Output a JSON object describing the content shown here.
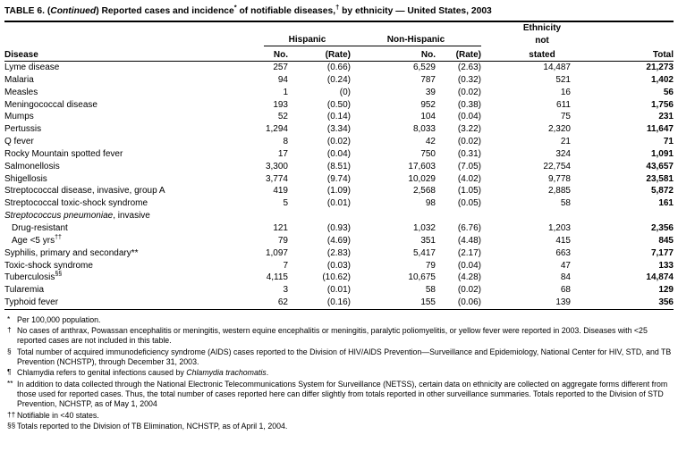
{
  "title": {
    "prefix": "TABLE 6. (",
    "continued": "Continued",
    "mid": ") Reported cases and incidence",
    "sup1": "*",
    "mid2": " of notifiable diseases,",
    "sup2": "†",
    "suffix": " by ethnicity — United States, 2003"
  },
  "table": {
    "header": {
      "disease": "Disease",
      "group_hispanic": "Hispanic",
      "group_non_hispanic": "Non-Hispanic",
      "sub_no": "No.",
      "sub_rate": "(Rate)",
      "ethnicity_line1": "Ethnicity",
      "ethnicity_line2": "not",
      "ethnicity_line3": "stated",
      "total": "Total"
    },
    "rows": [
      {
        "disease": "Lyme disease",
        "values": [
          "257",
          "(0.66)",
          "6,529",
          "(2.63)",
          "14,487",
          "21,273"
        ]
      },
      {
        "disease": "Malaria",
        "values": [
          "94",
          "(0.24)",
          "787",
          "(0.32)",
          "521",
          "1,402"
        ]
      },
      {
        "disease": "Measles",
        "values": [
          "1",
          "(0)",
          "39",
          "(0.02)",
          "16",
          "56"
        ]
      },
      {
        "disease": "Meningococcal disease",
        "values": [
          "193",
          "(0.50)",
          "952",
          "(0.38)",
          "611",
          "1,756"
        ]
      },
      {
        "disease": "Mumps",
        "values": [
          "52",
          "(0.14)",
          "104",
          "(0.04)",
          "75",
          "231"
        ]
      },
      {
        "disease": "Pertussis",
        "values": [
          "1,294",
          "(3.34)",
          "8,033",
          "(3.22)",
          "2,320",
          "11,647"
        ]
      },
      {
        "disease": "Q fever",
        "values": [
          "8",
          "(0.02)",
          "42",
          "(0.02)",
          "21",
          "71"
        ]
      },
      {
        "disease": "Rocky Mountain spotted fever",
        "values": [
          "17",
          "(0.04)",
          "750",
          "(0.31)",
          "324",
          "1,091"
        ]
      },
      {
        "disease": "Salmonellosis",
        "values": [
          "3,300",
          "(8.51)",
          "17,603",
          "(7.05)",
          "22,754",
          "43,657"
        ]
      },
      {
        "disease": "Shigellosis",
        "values": [
          "3,774",
          "(9.74)",
          "10,029",
          "(4.02)",
          "9,778",
          "23,581"
        ]
      },
      {
        "disease": "Streptococcal disease, invasive, group A",
        "values": [
          "419",
          "(1.09)",
          "2,568",
          "(1.05)",
          "2,885",
          "5,872"
        ]
      },
      {
        "disease": "Streptococcal toxic-shock syndrome",
        "values": [
          "5",
          "(0.01)",
          "98",
          "(0.05)",
          "58",
          "161"
        ]
      },
      {
        "disease_italic": "Streptococcus pneumoniae",
        "disease": ", invasive",
        "values": [
          "",
          "",
          "",
          "",
          "",
          ""
        ]
      },
      {
        "disease": "Drug-resistant",
        "indent": true,
        "values": [
          "121",
          "(0.93)",
          "1,032",
          "(6.76)",
          "1,203",
          "2,356"
        ]
      },
      {
        "disease": "Age <5 yrs",
        "sup": "††",
        "indent": true,
        "values": [
          "79",
          "(4.69)",
          "351",
          "(4.48)",
          "415",
          "845"
        ]
      },
      {
        "disease": "Syphilis, primary and secondary**",
        "values": [
          "1,097",
          "(2.83)",
          "5,417",
          "(2.17)",
          "663",
          "7,177"
        ]
      },
      {
        "disease": "Toxic-shock syndrome",
        "values": [
          "7",
          "(0.03)",
          "79",
          "(0.04)",
          "47",
          "133"
        ]
      },
      {
        "disease": "Tuberculosis",
        "sup": "§§",
        "values": [
          "4,115",
          "(10.62)",
          "10,675",
          "(4.28)",
          "84",
          "14,874"
        ]
      },
      {
        "disease": "Tularemia",
        "values": [
          "3",
          "(0.01)",
          "58",
          "(0.02)",
          "68",
          "129"
        ]
      },
      {
        "disease": "Typhoid fever",
        "values": [
          "62",
          "(0.16)",
          "155",
          "(0.06)",
          "139",
          "356"
        ]
      }
    ]
  },
  "footnotes": [
    {
      "marker": "*",
      "pre": "Per 100,000 population."
    },
    {
      "marker": "†",
      "pre": "No cases of anthrax, Powassan encephalitis or meningitis, western equine encephalitis or meningitis, paralytic poliomyelitis, or yellow fever were reported in 2003. Diseases with <25 reported cases are not included in this table."
    },
    {
      "marker": "§",
      "pre": "Total number of acquired immunodeficiency syndrome (AIDS) cases reported to the Division of HIV/AIDS Prevention—Surveillance and Epidemiology, National Center for HIV, STD, and TB Prevention (NCHSTP), through December 31, 2003."
    },
    {
      "marker": "¶",
      "pre": "Chlamydia refers to genital infections caused by ",
      "italic": "Chlamydia trachomatis",
      "post": "."
    },
    {
      "marker": "**",
      "pre": "In addition to data collected through the National Electronic Telecommunications System for Surveillance (NETSS), certain data on ethnicity are collected on aggregate forms different from those used for reported cases. Thus, the total number of cases reported here can differ slightly from totals reported in other surveillance summaries. Totals reported to the Division of STD Prevention, NCHSTP, as of May 1, 2004"
    },
    {
      "marker": "††",
      "pre": "Notifiable in <40 states."
    },
    {
      "marker": "§§",
      "pre": "Totals reported to the Division of TB Elimination, NCHSTP, as of April 1, 2004."
    }
  ]
}
